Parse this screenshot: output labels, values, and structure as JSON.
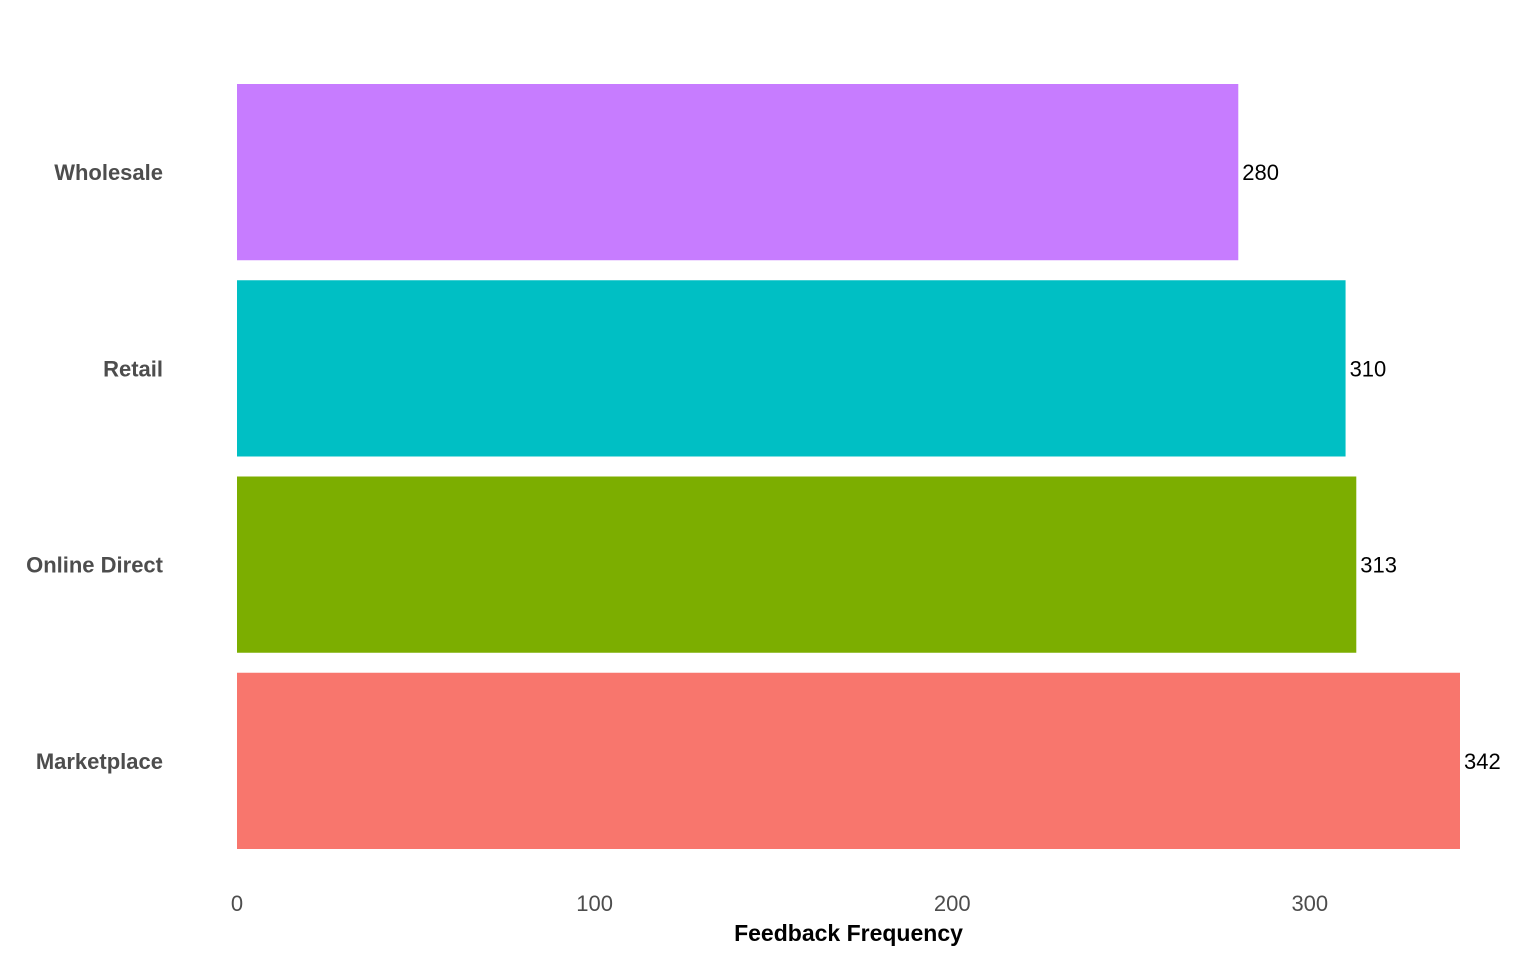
{
  "chart_data": {
    "type": "bar",
    "orientation": "horizontal",
    "categories": [
      "Marketplace",
      "Online Direct",
      "Retail",
      "Wholesale"
    ],
    "values": [
      342,
      313,
      310,
      280
    ],
    "colors": [
      "#F8766D",
      "#7CAE00",
      "#00BFC4",
      "#C77CFF"
    ],
    "title": "",
    "xlabel": "Feedback Frequency",
    "ylabel": "",
    "xlim": [
      0,
      342
    ],
    "x_ticks": [
      0,
      100,
      200,
      300
    ],
    "x_tick_labels": [
      "0",
      "100",
      "200",
      "300"
    ],
    "grid": false,
    "legend": "none",
    "data_labels": [
      "342",
      "313",
      "310",
      "280"
    ]
  }
}
